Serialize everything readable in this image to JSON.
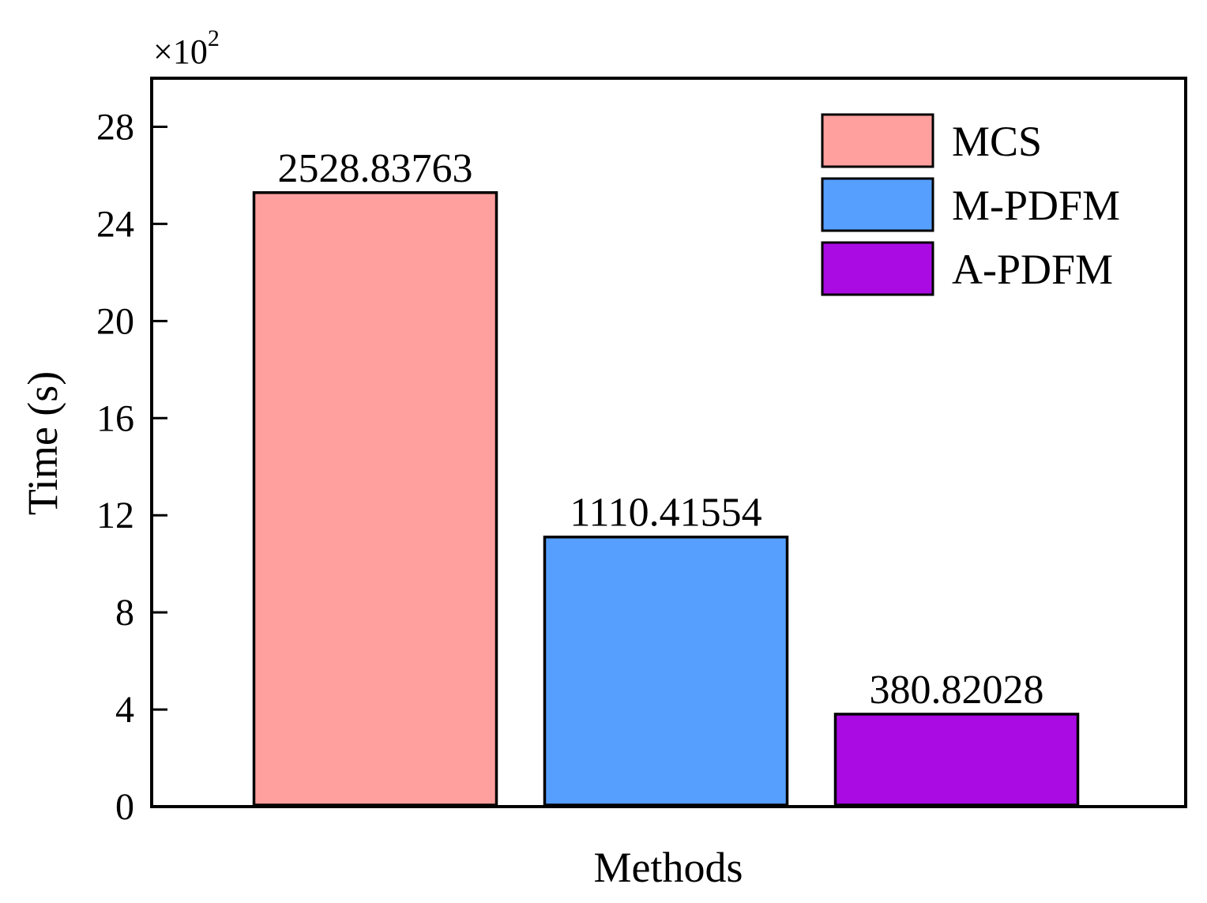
{
  "chart_data": {
    "type": "bar",
    "title": "",
    "xlabel": "Methods",
    "ylabel": "Time (s)",
    "y_multiplier": {
      "base": "×10",
      "exponent": "2"
    },
    "ylim": [
      0,
      30
    ],
    "yticks": [
      0,
      4,
      8,
      12,
      16,
      20,
      24,
      28
    ],
    "grid": false,
    "legend_position": "top-right",
    "categories": [
      "MCS",
      "M-PDFM",
      "A-PDFM"
    ],
    "series": [
      {
        "name": "MCS",
        "value": 25.2883763,
        "label": "2528.83763",
        "color": "#FFA09E"
      },
      {
        "name": "M-PDFM",
        "value": 11.1041554,
        "label": "1110.41554",
        "color": "#569FFF"
      },
      {
        "name": "A-PDFM",
        "value": 3.8082028,
        "label": "380.82028",
        "color": "#AA0BE3"
      }
    ]
  }
}
